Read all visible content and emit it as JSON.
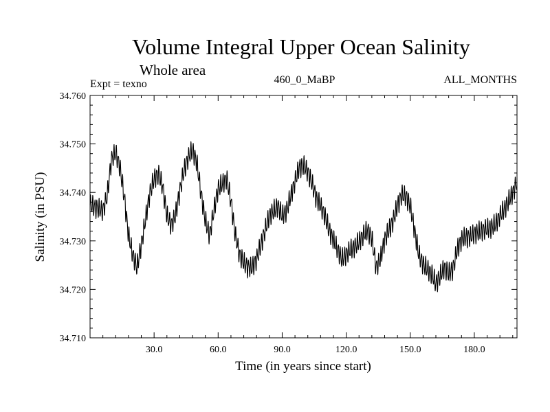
{
  "chart_data": {
    "type": "line",
    "title": "Volume Integral Upper Ocean Salinity",
    "subtitle": "Whole area",
    "top_left_label": "Expt = texno",
    "top_center_label": "460_0_MaBP",
    "top_right_label": "ALL_MONTHS",
    "xlabel": "Time (in years since start)",
    "ylabel": "Salinity (in PSU)",
    "xlim": [
      0,
      200
    ],
    "ylim": [
      34.71,
      34.76
    ],
    "x_ticks": [
      30,
      60,
      90,
      120,
      150,
      180
    ],
    "x_tick_labels": [
      "30.0",
      "60.0",
      "90.0",
      "120.0",
      "150.0",
      "180.0"
    ],
    "y_ticks": [
      34.71,
      34.72,
      34.73,
      34.74,
      34.75,
      34.76
    ],
    "y_tick_labels": [
      "34.710",
      "34.720",
      "34.730",
      "34.740",
      "34.750",
      "34.760"
    ],
    "series": [
      {
        "name": "Salinity",
        "color": "#000000",
        "seasonal_amplitude": 0.0017,
        "x": [
          0,
          3,
          6,
          8,
          10,
          12,
          14,
          16,
          18,
          20,
          22,
          24,
          26,
          28,
          30,
          32,
          34,
          36,
          38,
          40,
          42,
          44,
          46,
          48,
          50,
          52,
          54,
          56,
          58,
          60,
          62,
          64,
          66,
          68,
          70,
          72,
          74,
          76,
          78,
          80,
          82,
          84,
          86,
          88,
          90,
          92,
          94,
          96,
          98,
          100,
          102,
          104,
          106,
          108,
          110,
          112,
          114,
          116,
          118,
          120,
          122,
          124,
          126,
          128,
          130,
          132,
          134,
          136,
          138,
          140,
          142,
          144,
          146,
          148,
          150,
          152,
          154,
          156,
          158,
          160,
          162,
          164,
          166,
          168,
          170,
          172,
          174,
          176,
          178,
          180,
          182,
          184,
          186,
          188,
          190,
          192,
          194,
          196,
          198,
          200
        ],
        "values": [
          34.7375,
          34.7368,
          34.7362,
          34.7392,
          34.7468,
          34.7482,
          34.7452,
          34.7392,
          34.7312,
          34.7272,
          34.7245,
          34.7292,
          34.7345,
          34.7398,
          34.7428,
          34.7438,
          34.7412,
          34.7352,
          34.7332,
          34.7352,
          34.7402,
          34.7445,
          34.7472,
          34.7488,
          34.7462,
          34.7398,
          34.7342,
          34.7312,
          34.7362,
          34.7408,
          34.7418,
          34.7428,
          34.7382,
          34.7312,
          34.7272,
          34.7255,
          34.7245,
          34.7245,
          34.7262,
          34.7292,
          34.7322,
          34.7352,
          34.7362,
          34.7372,
          34.7352,
          34.7362,
          34.7392,
          34.7422,
          34.7452,
          34.7455,
          34.7442,
          34.7418,
          34.7388,
          34.7372,
          34.7352,
          34.7322,
          34.7302,
          34.7282,
          34.7262,
          34.7272,
          34.7282,
          34.7288,
          34.7298,
          34.7312,
          34.7322,
          34.7305,
          34.7245,
          34.7262,
          34.7302,
          34.7322,
          34.7342,
          34.7372,
          34.7395,
          34.7392,
          34.7372,
          34.7322,
          34.7272,
          34.7252,
          34.7242,
          34.7232,
          34.7212,
          34.7228,
          34.7245,
          34.7232,
          34.7242,
          34.7282,
          34.7302,
          34.7308,
          34.7308,
          34.7315,
          34.7318,
          34.7322,
          34.7325,
          34.7328,
          34.7335,
          34.7352,
          34.7365,
          34.7382,
          34.7398,
          34.7422
        ]
      }
    ]
  }
}
